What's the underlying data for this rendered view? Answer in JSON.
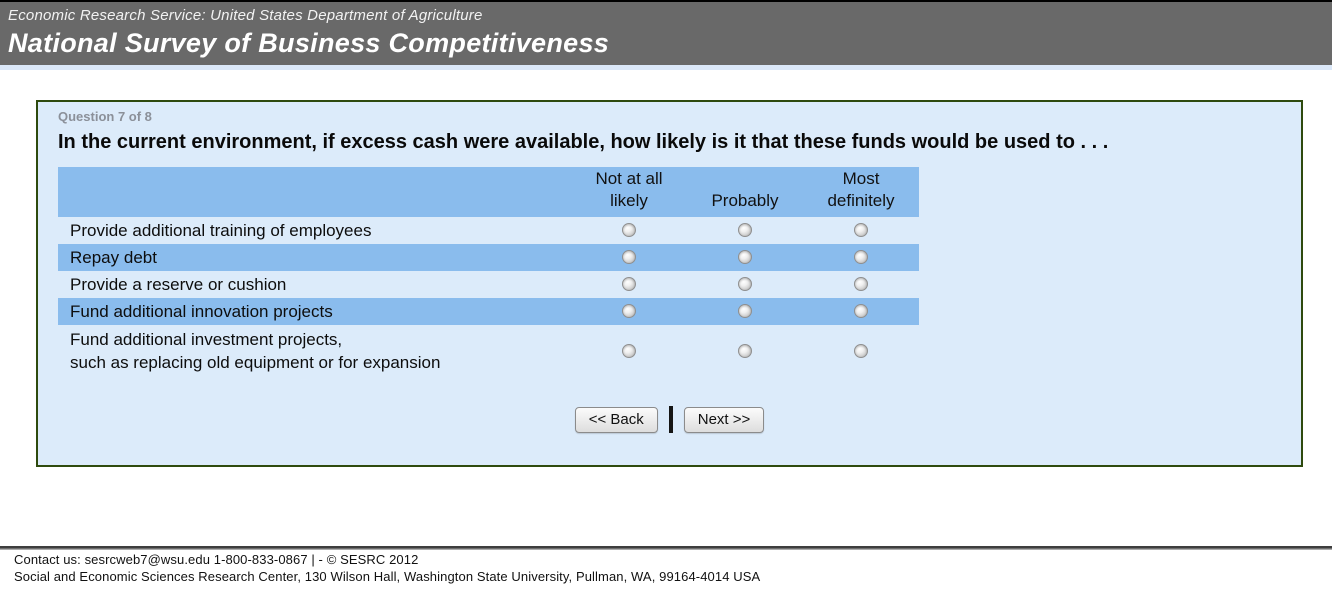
{
  "header": {
    "agency_line": "Economic Research Service: United States Department of Agriculture",
    "survey_title": "National Survey of Business Competitiveness"
  },
  "question_panel": {
    "progress_label": "Question 7 of 8",
    "question_text": "In the current environment, if excess cash were available, how likely is it that these funds would be used to . . .",
    "answer_columns": [
      "Not at all likely",
      "Probably",
      "Most definitely"
    ],
    "items": [
      "Provide additional training of employees",
      "Repay debt",
      "Provide a reserve or cushion",
      "Fund additional innovation projects",
      "Fund additional investment projects,\nsuch as replacing old equipment or for expansion"
    ],
    "radio_state": "unselected",
    "back_button": "<< Back",
    "next_button": "Next >>"
  },
  "footer": {
    "contact_line": "Contact us: sesrcweb7@wsu.edu 1-800-833-0867 | - © SESRC 2012",
    "address_line": "Social and Economic Sciences Research Center, 130 Wilson Hall, Washington State University, Pullman, WA, 99164-4014 USA"
  },
  "colors": {
    "banner_bg": "#696969",
    "panel_bg": "#dcebfa",
    "panel_border": "#2e4a0e",
    "row_highlight": "#8abced",
    "accent_strip": "#dbe8f8"
  }
}
